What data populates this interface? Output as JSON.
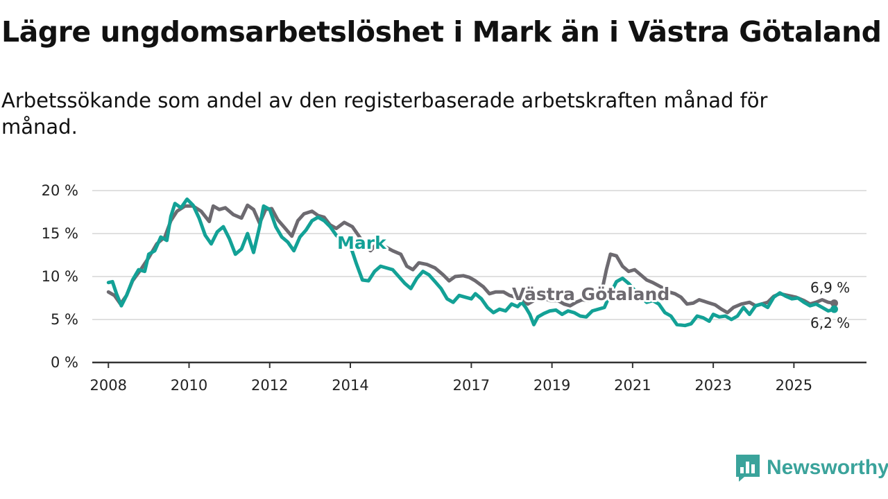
{
  "header": {
    "title": "Lägre ungdomsarbetslöshet i Mark än i Västra Götaland",
    "subtitle": "Arbetssökande som andel av den registerbaserade arbetskraften månad för månad."
  },
  "branding": {
    "name": "Newsworthy",
    "icon": "newsworthy-logo-icon",
    "color": "#3aa39b"
  },
  "chart_data": {
    "type": "line",
    "title": "Lägre ungdomsarbetslöshet i Mark än i Västra Götaland",
    "xlabel": "",
    "ylabel": "",
    "ylim": [
      0,
      20
    ],
    "xlim": [
      2007.6,
      2026.8
    ],
    "grid": true,
    "y_ticks": [
      0,
      5,
      10,
      15,
      20
    ],
    "y_tick_labels": [
      "0 %",
      "5 %",
      "10 %",
      "15 %",
      "20 %"
    ],
    "x_ticks": [
      2008,
      2010,
      2012,
      2014,
      2017,
      2019,
      2021,
      2023,
      2025
    ],
    "x_tick_labels": [
      "2008",
      "2010",
      "2012",
      "2014",
      "2017",
      "2019",
      "2021",
      "2023",
      "2025"
    ],
    "series": [
      {
        "name": "Västra Götaland",
        "label": "Västra Götaland",
        "color": "#6d6a70",
        "end_label": "6,9 %",
        "points": [
          [
            2008.0,
            8.2
          ],
          [
            2008.15,
            7.8
          ],
          [
            2008.3,
            6.8
          ],
          [
            2008.45,
            7.8
          ],
          [
            2008.6,
            9.5
          ],
          [
            2008.8,
            10.8
          ],
          [
            2009.0,
            12.2
          ],
          [
            2009.2,
            13.8
          ],
          [
            2009.4,
            14.6
          ],
          [
            2009.55,
            16.5
          ],
          [
            2009.7,
            17.6
          ],
          [
            2009.9,
            18.2
          ],
          [
            2010.1,
            18.2
          ],
          [
            2010.3,
            17.6
          ],
          [
            2010.5,
            16.4
          ],
          [
            2010.6,
            18.2
          ],
          [
            2010.75,
            17.8
          ],
          [
            2010.9,
            18.0
          ],
          [
            2011.1,
            17.2
          ],
          [
            2011.3,
            16.8
          ],
          [
            2011.45,
            18.3
          ],
          [
            2011.6,
            17.8
          ],
          [
            2011.75,
            16.2
          ],
          [
            2011.9,
            17.8
          ],
          [
            2012.05,
            17.9
          ],
          [
            2012.2,
            16.6
          ],
          [
            2012.35,
            15.8
          ],
          [
            2012.55,
            14.7
          ],
          [
            2012.7,
            16.5
          ],
          [
            2012.85,
            17.3
          ],
          [
            2013.05,
            17.6
          ],
          [
            2013.2,
            17.1
          ],
          [
            2013.35,
            16.9
          ],
          [
            2013.5,
            16.0
          ],
          [
            2013.65,
            15.6
          ],
          [
            2013.85,
            16.3
          ],
          [
            2014.05,
            15.8
          ],
          [
            2014.2,
            14.8
          ],
          [
            2014.35,
            13.8
          ],
          [
            2014.5,
            13.0
          ],
          [
            2014.65,
            13.8
          ],
          [
            2014.85,
            13.5
          ],
          [
            2015.05,
            13.0
          ],
          [
            2015.25,
            12.6
          ],
          [
            2015.4,
            11.2
          ],
          [
            2015.55,
            10.8
          ],
          [
            2015.7,
            11.6
          ],
          [
            2015.9,
            11.4
          ],
          [
            2016.1,
            11.0
          ],
          [
            2016.3,
            10.2
          ],
          [
            2016.45,
            9.5
          ],
          [
            2016.6,
            10.0
          ],
          [
            2016.8,
            10.1
          ],
          [
            2016.95,
            9.9
          ],
          [
            2017.1,
            9.5
          ],
          [
            2017.3,
            8.8
          ],
          [
            2017.45,
            8.0
          ],
          [
            2017.6,
            8.2
          ],
          [
            2017.8,
            8.2
          ],
          [
            2017.95,
            7.8
          ],
          [
            2018.1,
            7.6
          ],
          [
            2018.25,
            7.3
          ],
          [
            2018.4,
            6.8
          ],
          [
            2018.55,
            7.2
          ],
          [
            2018.75,
            7.6
          ],
          [
            2018.95,
            7.2
          ],
          [
            2019.15,
            7.2
          ],
          [
            2019.3,
            6.8
          ],
          [
            2019.45,
            6.6
          ],
          [
            2019.6,
            7.0
          ],
          [
            2019.75,
            7.3
          ],
          [
            2019.9,
            7.2
          ],
          [
            2020.1,
            7.6
          ],
          [
            2020.25,
            8.6
          ],
          [
            2020.35,
            10.8
          ],
          [
            2020.45,
            12.6
          ],
          [
            2020.6,
            12.4
          ],
          [
            2020.75,
            11.2
          ],
          [
            2020.9,
            10.6
          ],
          [
            2021.05,
            10.8
          ],
          [
            2021.2,
            10.2
          ],
          [
            2021.35,
            9.6
          ],
          [
            2021.5,
            9.3
          ],
          [
            2021.7,
            8.8
          ],
          [
            2021.9,
            8.2
          ],
          [
            2022.05,
            8.0
          ],
          [
            2022.2,
            7.6
          ],
          [
            2022.35,
            6.8
          ],
          [
            2022.5,
            6.9
          ],
          [
            2022.65,
            7.3
          ],
          [
            2022.85,
            7.0
          ],
          [
            2023.05,
            6.7
          ],
          [
            2023.2,
            6.2
          ],
          [
            2023.35,
            5.8
          ],
          [
            2023.5,
            6.4
          ],
          [
            2023.7,
            6.8
          ],
          [
            2023.9,
            7.0
          ],
          [
            2024.05,
            6.6
          ],
          [
            2024.2,
            6.8
          ],
          [
            2024.35,
            7.0
          ],
          [
            2024.5,
            7.7
          ],
          [
            2024.65,
            8.0
          ],
          [
            2024.85,
            7.8
          ],
          [
            2025.05,
            7.6
          ],
          [
            2025.25,
            7.2
          ],
          [
            2025.4,
            6.8
          ],
          [
            2025.55,
            7.0
          ],
          [
            2025.7,
            7.3
          ],
          [
            2025.85,
            7.0
          ],
          [
            2026.0,
            6.9
          ]
        ]
      },
      {
        "name": "Mark",
        "label": "Mark",
        "color": "#13a196",
        "end_label": "6,2 %",
        "points": [
          [
            2008.0,
            9.3
          ],
          [
            2008.1,
            9.4
          ],
          [
            2008.2,
            8.0
          ],
          [
            2008.32,
            6.6
          ],
          [
            2008.45,
            7.8
          ],
          [
            2008.6,
            9.6
          ],
          [
            2008.75,
            10.8
          ],
          [
            2008.9,
            10.6
          ],
          [
            2009.0,
            12.6
          ],
          [
            2009.15,
            13.0
          ],
          [
            2009.3,
            14.6
          ],
          [
            2009.45,
            14.2
          ],
          [
            2009.55,
            17.0
          ],
          [
            2009.65,
            18.5
          ],
          [
            2009.8,
            18.0
          ],
          [
            2009.95,
            19.0
          ],
          [
            2010.1,
            18.3
          ],
          [
            2010.25,
            16.8
          ],
          [
            2010.4,
            14.8
          ],
          [
            2010.55,
            13.8
          ],
          [
            2010.7,
            15.2
          ],
          [
            2010.85,
            15.8
          ],
          [
            2011.0,
            14.4
          ],
          [
            2011.15,
            12.6
          ],
          [
            2011.3,
            13.2
          ],
          [
            2011.45,
            15.0
          ],
          [
            2011.6,
            12.8
          ],
          [
            2011.75,
            15.8
          ],
          [
            2011.85,
            18.2
          ],
          [
            2012.0,
            17.8
          ],
          [
            2012.15,
            15.8
          ],
          [
            2012.3,
            14.6
          ],
          [
            2012.45,
            14.0
          ],
          [
            2012.6,
            13.0
          ],
          [
            2012.75,
            14.6
          ],
          [
            2012.9,
            15.4
          ],
          [
            2013.05,
            16.5
          ],
          [
            2013.2,
            16.9
          ],
          [
            2013.35,
            16.5
          ],
          [
            2013.5,
            15.8
          ],
          [
            2013.65,
            14.8
          ],
          [
            2013.8,
            14.2
          ],
          [
            2014.0,
            13.6
          ],
          [
            2014.15,
            11.5
          ],
          [
            2014.3,
            9.6
          ],
          [
            2014.45,
            9.5
          ],
          [
            2014.6,
            10.6
          ],
          [
            2014.75,
            11.2
          ],
          [
            2014.9,
            11.0
          ],
          [
            2015.05,
            10.8
          ],
          [
            2015.2,
            10.0
          ],
          [
            2015.35,
            9.2
          ],
          [
            2015.5,
            8.6
          ],
          [
            2015.65,
            9.8
          ],
          [
            2015.8,
            10.6
          ],
          [
            2015.95,
            10.2
          ],
          [
            2016.1,
            9.4
          ],
          [
            2016.25,
            8.6
          ],
          [
            2016.4,
            7.4
          ],
          [
            2016.55,
            7.0
          ],
          [
            2016.7,
            7.8
          ],
          [
            2016.85,
            7.6
          ],
          [
            2017.0,
            7.4
          ],
          [
            2017.1,
            8.0
          ],
          [
            2017.25,
            7.4
          ],
          [
            2017.4,
            6.4
          ],
          [
            2017.55,
            5.8
          ],
          [
            2017.7,
            6.2
          ],
          [
            2017.85,
            6.0
          ],
          [
            2018.0,
            6.8
          ],
          [
            2018.15,
            6.5
          ],
          [
            2018.25,
            7.0
          ],
          [
            2018.35,
            6.4
          ],
          [
            2018.45,
            5.6
          ],
          [
            2018.55,
            4.4
          ],
          [
            2018.65,
            5.3
          ],
          [
            2018.8,
            5.7
          ],
          [
            2018.95,
            6.0
          ],
          [
            2019.1,
            6.1
          ],
          [
            2019.25,
            5.6
          ],
          [
            2019.4,
            6.0
          ],
          [
            2019.55,
            5.8
          ],
          [
            2019.7,
            5.4
          ],
          [
            2019.85,
            5.3
          ],
          [
            2020.0,
            6.0
          ],
          [
            2020.15,
            6.2
          ],
          [
            2020.3,
            6.4
          ],
          [
            2020.45,
            8.0
          ],
          [
            2020.6,
            9.4
          ],
          [
            2020.75,
            9.8
          ],
          [
            2020.9,
            9.2
          ],
          [
            2021.05,
            8.4
          ],
          [
            2021.2,
            7.6
          ],
          [
            2021.35,
            7.0
          ],
          [
            2021.5,
            7.2
          ],
          [
            2021.65,
            6.8
          ],
          [
            2021.8,
            5.8
          ],
          [
            2021.95,
            5.4
          ],
          [
            2022.1,
            4.4
          ],
          [
            2022.3,
            4.3
          ],
          [
            2022.45,
            4.5
          ],
          [
            2022.6,
            5.4
          ],
          [
            2022.75,
            5.2
          ],
          [
            2022.9,
            4.8
          ],
          [
            2023.0,
            5.6
          ],
          [
            2023.15,
            5.3
          ],
          [
            2023.3,
            5.4
          ],
          [
            2023.45,
            5.0
          ],
          [
            2023.6,
            5.4
          ],
          [
            2023.75,
            6.4
          ],
          [
            2023.9,
            5.6
          ],
          [
            2024.05,
            6.6
          ],
          [
            2024.2,
            6.8
          ],
          [
            2024.35,
            6.4
          ],
          [
            2024.5,
            7.6
          ],
          [
            2024.65,
            8.1
          ],
          [
            2024.8,
            7.7
          ],
          [
            2024.95,
            7.4
          ],
          [
            2025.1,
            7.5
          ],
          [
            2025.25,
            7.0
          ],
          [
            2025.4,
            6.6
          ],
          [
            2025.55,
            6.8
          ],
          [
            2025.7,
            6.4
          ],
          [
            2025.85,
            6.0
          ],
          [
            2026.0,
            6.2
          ]
        ]
      }
    ]
  }
}
